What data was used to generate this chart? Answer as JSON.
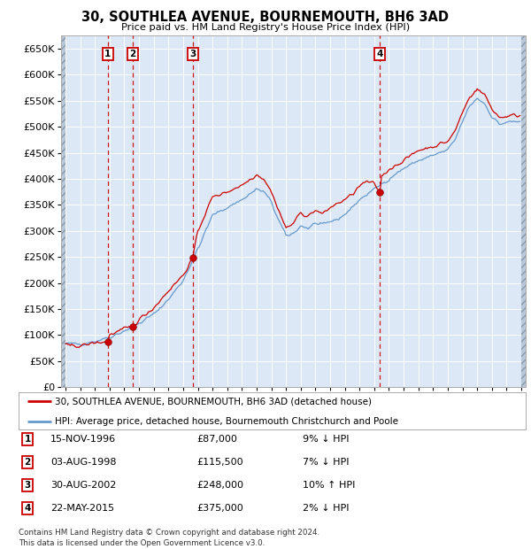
{
  "title": "30, SOUTHLEA AVENUE, BOURNEMOUTH, BH6 3AD",
  "subtitle": "Price paid vs. HM Land Registry's House Price Index (HPI)",
  "ylim": [
    0,
    675000
  ],
  "yticks": [
    0,
    50000,
    100000,
    150000,
    200000,
    250000,
    300000,
    350000,
    400000,
    450000,
    500000,
    550000,
    600000,
    650000
  ],
  "xlim_start": 1993.7,
  "xlim_end": 2025.3,
  "bg_color": "#ffffff",
  "plot_bg_color": "#dce8f5",
  "grid_color": "#ffffff",
  "red_line_color": "#cc0000",
  "blue_line_color": "#6699cc",
  "sale_marker_color": "#cc0000",
  "vline_color": "#cc0000",
  "hatch_color": "#b8c8d8",
  "transactions": [
    {
      "label": "1",
      "date": "15-NOV-1996",
      "price": 87000,
      "year": 1996.876,
      "hpi_pct": "9% ↓ HPI"
    },
    {
      "label": "2",
      "date": "03-AUG-1998",
      "price": 115500,
      "year": 1998.587,
      "hpi_pct": "7% ↓ HPI"
    },
    {
      "label": "3",
      "date": "30-AUG-2002",
      "price": 248000,
      "year": 2002.662,
      "hpi_pct": "10% ↑ HPI"
    },
    {
      "label": "4",
      "date": "22-MAY-2015",
      "price": 375000,
      "year": 2015.389,
      "hpi_pct": "2% ↓ HPI"
    }
  ],
  "legend_red": "30, SOUTHLEA AVENUE, BOURNEMOUTH, BH6 3AD (detached house)",
  "legend_blue": "HPI: Average price, detached house, Bournemouth Christchurch and Poole",
  "footer": "Contains HM Land Registry data © Crown copyright and database right 2024.\nThis data is licensed under the Open Government Licence v3.0."
}
